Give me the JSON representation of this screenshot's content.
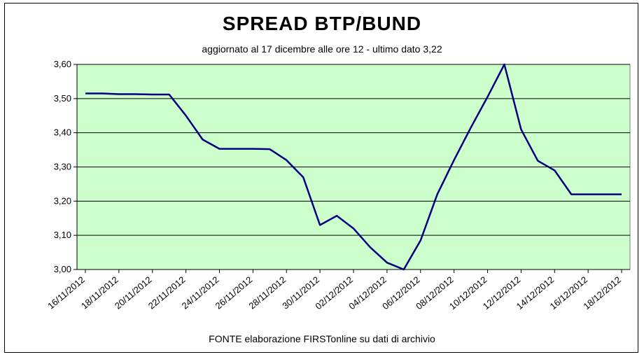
{
  "chart_data": {
    "type": "line",
    "title": "SPREAD  BTP/BUND",
    "subtitle": "aggiornato al 17  dicembre alle ore 12 - ultimo dato 3,22",
    "source": "FONTE elaborazione FIRSTonline su dati di archivio",
    "xlabel": "",
    "ylabel": "",
    "ylim": [
      3.0,
      3.6
    ],
    "yticks": [
      "3,00",
      "3,10",
      "3,20",
      "3,30",
      "3,40",
      "3,50",
      "3,60"
    ],
    "xticks": [
      "16/11/2012",
      "18/11/2012",
      "20/11/2012",
      "22/11/2012",
      "24/11/2012",
      "26/11/2012",
      "28/11/2012",
      "30/11/2012",
      "02/12/2012",
      "04/12/2012",
      "06/12/2012",
      "08/12/2012",
      "10/12/2012",
      "12/12/2012",
      "14/12/2012",
      "16/12/2012",
      "18/12/2012"
    ],
    "grid": true,
    "background_color": "#ccffcc",
    "line_color": "#000080",
    "series": [
      {
        "points": [
          [
            "16/11/2012",
            3.515
          ],
          [
            "17/11/2012",
            3.515
          ],
          [
            "18/11/2012",
            3.513
          ],
          [
            "19/11/2012",
            3.513
          ],
          [
            "20/11/2012",
            3.512
          ],
          [
            "21/11/2012",
            3.512
          ],
          [
            "22/11/2012",
            3.45
          ],
          [
            "23/11/2012",
            3.38
          ],
          [
            "24/11/2012",
            3.353
          ],
          [
            "25/11/2012",
            3.353
          ],
          [
            "26/11/2012",
            3.353
          ],
          [
            "27/11/2012",
            3.352
          ],
          [
            "28/11/2012",
            3.32
          ],
          [
            "29/11/2012",
            3.27
          ],
          [
            "30/11/2012",
            3.13
          ],
          [
            "01/12/2012",
            3.157
          ],
          [
            "02/12/2012",
            3.12
          ],
          [
            "03/12/2012",
            3.065
          ],
          [
            "04/12/2012",
            3.02
          ],
          [
            "05/12/2012",
            3.0
          ],
          [
            "06/12/2012",
            3.085
          ],
          [
            "07/12/2012",
            3.22
          ],
          [
            "08/12/2012",
            3.32
          ],
          [
            "09/12/2012",
            3.415
          ],
          [
            "10/12/2012",
            3.505
          ],
          [
            "11/12/2012",
            3.6
          ],
          [
            "12/12/2012",
            3.41
          ],
          [
            "13/12/2012",
            3.318
          ],
          [
            "14/12/2012",
            3.29
          ],
          [
            "15/12/2012",
            3.22
          ],
          [
            "16/12/2012",
            3.22
          ],
          [
            "17/12/2012",
            3.22
          ],
          [
            "18/12/2012",
            3.22
          ]
        ]
      }
    ]
  }
}
